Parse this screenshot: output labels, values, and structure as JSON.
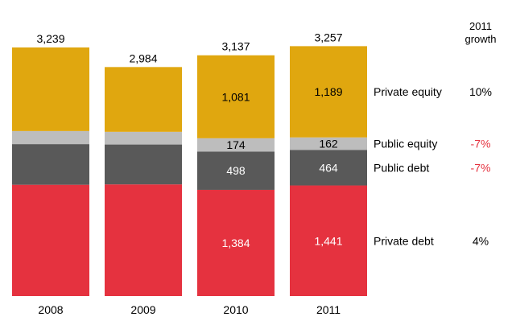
{
  "chart_data": {
    "type": "bar",
    "stacked": true,
    "categories": [
      "2008",
      "2009",
      "2010",
      "2011"
    ],
    "totals": [
      "3,239",
      "2,984",
      "3,137",
      "3,257"
    ],
    "series": [
      {
        "name": "Private debt",
        "color": "#e5323f",
        "values": [
          1450,
          1455,
          1384,
          1441
        ],
        "labels": [
          "",
          "",
          "1,384",
          "1,441"
        ],
        "label_color": "#ffffff",
        "growth": "4%",
        "growth_color": "#000000"
      },
      {
        "name": "Public debt",
        "color": "#595959",
        "values": [
          530,
          520,
          498,
          464
        ],
        "labels": [
          "",
          "",
          "498",
          "464"
        ],
        "label_color": "#ffffff",
        "growth": "-7%",
        "growth_color": "#e5323f"
      },
      {
        "name": "Public equity",
        "color": "#bdbdbd",
        "values": [
          170,
          165,
          174,
          162
        ],
        "labels": [
          "",
          "",
          "174",
          "162"
        ],
        "label_color": "#000000",
        "growth": "-7%",
        "growth_color": "#e5323f"
      },
      {
        "name": "Private equity",
        "color": "#e0a70f",
        "values": [
          1089,
          844,
          1081,
          1189
        ],
        "labels": [
          "",
          "",
          "1,081",
          "1,189"
        ],
        "label_color": "#000000",
        "growth": "10%",
        "growth_color": "#000000"
      }
    ],
    "growth_header": [
      "2011",
      "growth"
    ],
    "ylim": [
      0,
      3300
    ],
    "grid": false,
    "legend": "right"
  }
}
